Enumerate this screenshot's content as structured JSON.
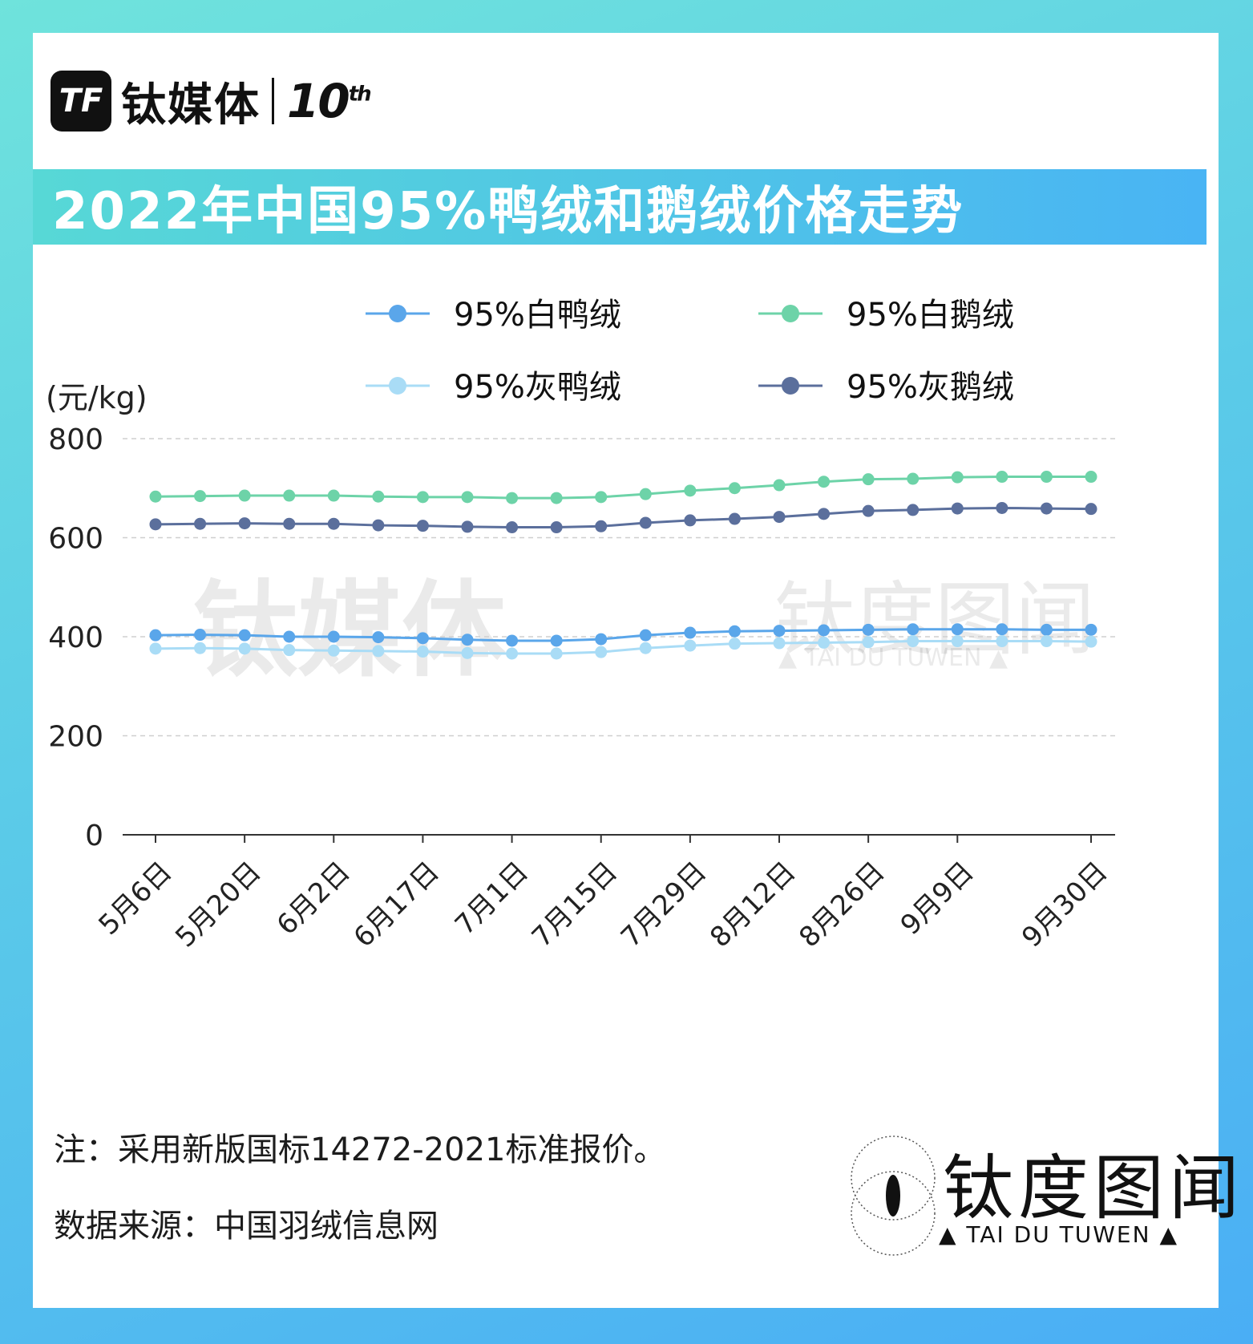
{
  "brand": {
    "logo_letter": "TF",
    "name": "钛媒体",
    "ten": "10",
    "ten_sup": "th"
  },
  "title": "2022年中国95%鸭绒和鹅绒价格走势",
  "footnotes": {
    "note": "注：采用新版国标14272-2021标准报价。",
    "source": "数据来源：中国羽绒信息网"
  },
  "stamp": {
    "name": "钛度图闻",
    "sub": "▲ TAI DU TUWEN ▲"
  },
  "watermark": {
    "name": "钛媒体",
    "stamp_name": "钛度图闻",
    "stamp_sub": "▲ TAI DU TUWEN ▲"
  },
  "colors": {
    "white_duck": "#5aa6ea",
    "white_goose": "#6dd3a8",
    "grey_duck": "#a9dcf6",
    "grey_goose": "#5b6f9c",
    "grid": "#cfcfcf",
    "axis": "#333333"
  },
  "chart_data": {
    "type": "line",
    "title": "2022年中国95%鸭绒和鹅绒价格走势",
    "ylabel": "(元/kg)",
    "xlabel": "",
    "ylim": [
      0,
      800
    ],
    "yticks": [
      0,
      200,
      400,
      600,
      800
    ],
    "grid": true,
    "legend_position": "top",
    "x": [
      "5月6日",
      "",
      "5月20日",
      "",
      "6月2日",
      "",
      "6月17日",
      "",
      "7月1日",
      "",
      "7月15日",
      "",
      "7月29日",
      "",
      "8月12日",
      "",
      "8月26日",
      "",
      "9月9日",
      "",
      "",
      "9月30日"
    ],
    "x_tick_labels": [
      "5月6日",
      "5月20日",
      "6月2日",
      "6月17日",
      "7月1日",
      "7月15日",
      "7月29日",
      "8月12日",
      "8月26日",
      "9月9日",
      "9月30日"
    ],
    "series": [
      {
        "name": "95%白鸭绒",
        "values": [
          403,
          404,
          403,
          400,
          400,
          399,
          397,
          394,
          392,
          392,
          395,
          403,
          408,
          411,
          412,
          413,
          414,
          415,
          415,
          415,
          414,
          414
        ]
      },
      {
        "name": "95%白鹅绒",
        "values": [
          683,
          684,
          685,
          685,
          685,
          683,
          682,
          682,
          680,
          680,
          682,
          688,
          695,
          700,
          706,
          713,
          718,
          719,
          722,
          723,
          723,
          723
        ]
      },
      {
        "name": "95%灰鸭绒",
        "values": [
          376,
          377,
          376,
          373,
          372,
          371,
          370,
          367,
          366,
          366,
          369,
          377,
          382,
          386,
          387,
          388,
          389,
          391,
          391,
          391,
          391,
          390
        ]
      },
      {
        "name": "95%灰鹅绒",
        "values": [
          627,
          628,
          629,
          628,
          628,
          625,
          624,
          622,
          621,
          621,
          623,
          630,
          635,
          638,
          642,
          648,
          654,
          656,
          659,
          660,
          659,
          658
        ]
      }
    ]
  }
}
